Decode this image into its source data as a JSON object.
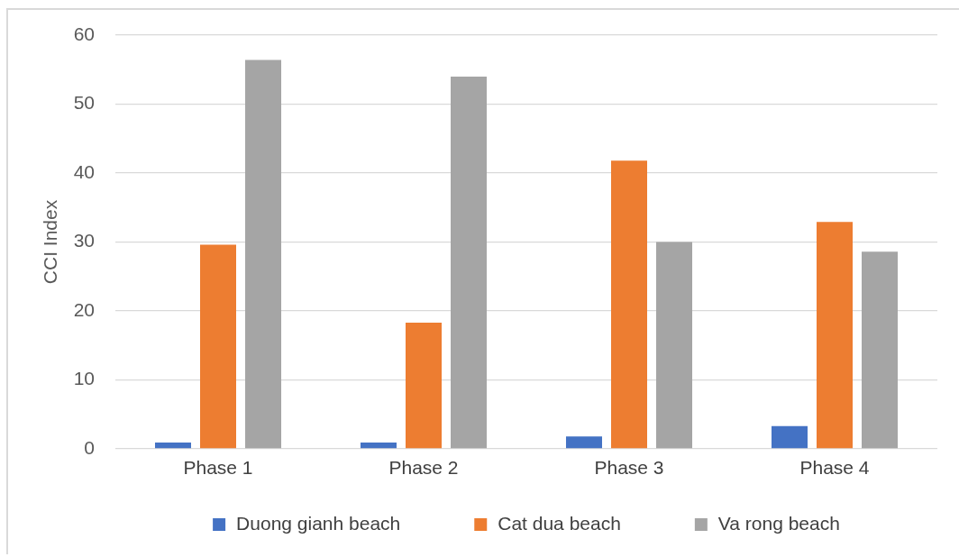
{
  "chart_data": {
    "type": "bar",
    "ylabel": "CCI Index",
    "categories": [
      "Phase 1",
      "Phase 2",
      "Phase 3",
      "Phase 4"
    ],
    "series": [
      {
        "name": "Duong gianh beach",
        "color": "#4472c4",
        "values": [
          0.9,
          0.9,
          1.8,
          3.3
        ]
      },
      {
        "name": "Cat dua beach",
        "color": "#ed7d31",
        "values": [
          29.6,
          18.3,
          41.8,
          32.9
        ]
      },
      {
        "name": "Va rong beach",
        "color": "#a5a5a5",
        "values": [
          56.4,
          54.0,
          30.0,
          28.6
        ]
      }
    ],
    "ylim": [
      0,
      60
    ],
    "yticks": [
      0,
      10,
      20,
      30,
      40,
      50,
      60
    ],
    "grid": "y",
    "legend": "bottom"
  }
}
